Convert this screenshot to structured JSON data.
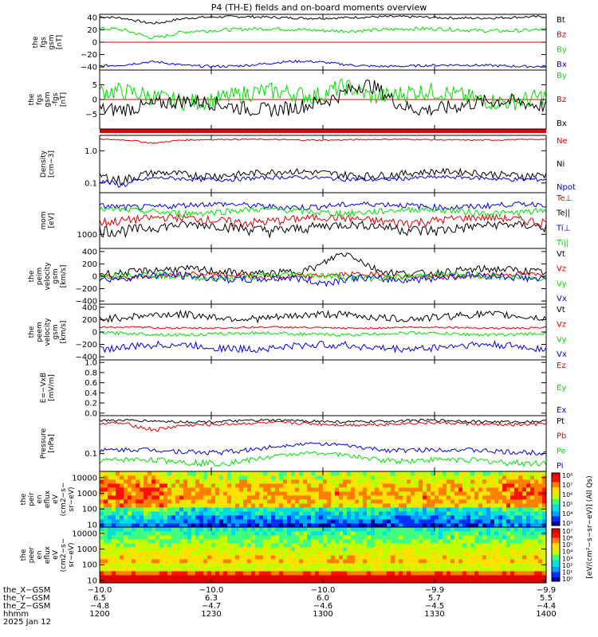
{
  "title": "P4 (TH-E) fields and on-board moments overview",
  "colors": {
    "black": "#000000",
    "red": "#e00000",
    "green": "#00e000",
    "blue": "#0000e0"
  },
  "chart_data": [
    {
      "id": "fgs",
      "type": "line",
      "ylabel": [
        "the",
        "fgs",
        "gsm",
        "[nT]"
      ],
      "ylim": [
        -45,
        45
      ],
      "yscale": "linear",
      "ticks": [
        {
          "v": 40,
          "t": "40"
        },
        {
          "v": 20,
          "t": "20"
        },
        {
          "v": 0,
          "t": "0"
        },
        {
          "v": -20,
          "t": "−20"
        },
        {
          "v": -40,
          "t": "−40"
        }
      ],
      "zero_line": true,
      "series": [
        {
          "name": "Bt",
          "color": "black",
          "base": 40,
          "noise": 2,
          "dip": [
            {
              "c": 0.12,
              "w": 0.05,
              "a": -8
            }
          ]
        },
        {
          "name": "Bz",
          "color": "red"
        },
        {
          "name": "By",
          "color": "green",
          "base": 20,
          "noise": 3,
          "dip": [
            {
              "c": 0.12,
              "w": 0.05,
              "a": -12
            }
          ]
        },
        {
          "name": "Bx",
          "color": "blue",
          "base": -38,
          "noise": 2,
          "dip": [
            {
              "c": 0.12,
              "w": 0.05,
              "a": 5
            },
            {
              "c": 0.45,
              "w": 0.1,
              "a": 6
            }
          ]
        }
      ]
    },
    {
      "id": "fgs_dsl",
      "type": "line",
      "ylabel": [
        "the",
        "fgs",
        "gsm",
        "-fgs",
        "[nT]"
      ],
      "ylim": [
        -10,
        10
      ],
      "yscale": "linear",
      "ticks": [
        {
          "v": 5,
          "t": "5"
        },
        {
          "v": 0,
          "t": "0"
        },
        {
          "v": -5,
          "t": "−5"
        }
      ],
      "zero_line": true,
      "series": [
        {
          "name": "By",
          "color": "green",
          "base": 1,
          "noise": 3,
          "dip": [
            {
              "c": 0.55,
              "w": 0.05,
              "a": 5
            }
          ]
        },
        {
          "name": "Bz",
          "color": "red"
        },
        {
          "name": "Bx",
          "color": "black",
          "base": -2,
          "noise": 2.5,
          "dip": [
            {
              "c": 0.6,
              "w": 0.06,
              "a": 6
            }
          ]
        }
      ]
    },
    {
      "id": "density",
      "type": "line",
      "ylabel": [
        "Density",
        "[cm−3]"
      ],
      "ylim": [
        0.05,
        3
      ],
      "yscale": "log",
      "ticks": [
        {
          "v": 1,
          "t": "1.0"
        },
        {
          "v": 0.1,
          "t": "0.1"
        }
      ],
      "series": [
        {
          "name": "Ne",
          "color": "red",
          "base": 2.2,
          "noise": 0.1,
          "dip": [
            {
              "c": 0.12,
              "w": 0.04,
              "a": -0.4
            }
          ]
        },
        {
          "name": "Ni",
          "color": "black",
          "base": 0.2,
          "noise": 0.05,
          "dip": [
            {
              "c": 0.05,
              "w": 0.05,
              "a": -0.1
            }
          ]
        },
        {
          "name": "Npot",
          "color": "blue",
          "base": 0.14,
          "noise": 0.02,
          "dip": [
            {
              "c": 0.05,
              "w": 0.05,
              "a": -0.06
            }
          ]
        }
      ]
    },
    {
      "id": "temperature",
      "type": "line",
      "ylabel": [
        "mom",
        "[eV]"
      ],
      "ylim": [
        400,
        15000
      ],
      "yscale": "log",
      "ticks": [
        {
          "v": 1000,
          "t": "1000"
        }
      ],
      "series": [
        {
          "name": "Te⊥",
          "color": "red",
          "base": 2600,
          "noise": 700
        },
        {
          "name": "Te||",
          "color": "black",
          "base": 1600,
          "noise": 500
        },
        {
          "name": "Ti⊥",
          "color": "blue",
          "base": 6500,
          "noise": 1200
        },
        {
          "name": "Ti||",
          "color": "green",
          "base": 4500,
          "noise": 900
        }
      ]
    },
    {
      "id": "vel_peim",
      "type": "line",
      "ylabel": [
        "the",
        "peim",
        "velocity",
        "gsm",
        "[km/s]"
      ],
      "ylim": [
        -450,
        450
      ],
      "yscale": "linear",
      "ticks": [
        {
          "v": 400,
          "t": "400"
        },
        {
          "v": 200,
          "t": "200"
        },
        {
          "v": 0,
          "t": "0"
        },
        {
          "v": -200,
          "t": "−200"
        },
        {
          "v": -400,
          "t": "−400"
        }
      ],
      "series": [
        {
          "name": "Vt",
          "color": "black",
          "base": 80,
          "noise": 60,
          "dip": [
            {
              "c": 0.55,
              "w": 0.05,
              "a": 250
            }
          ]
        },
        {
          "name": "Vz",
          "color": "red",
          "base": 10,
          "noise": 40
        },
        {
          "name": "Vy",
          "color": "green",
          "base": 0,
          "noise": 50
        },
        {
          "name": "Vx",
          "color": "blue",
          "base": -20,
          "noise": 60,
          "dip": [
            {
              "c": 0.5,
              "w": 0.05,
              "a": -120
            }
          ]
        }
      ]
    },
    {
      "id": "vel_peem",
      "type": "line",
      "ylabel": [
        "the",
        "peem",
        "velocity",
        "gsm",
        "[km/s]"
      ],
      "ylim": [
        -450,
        450
      ],
      "yscale": "linear",
      "ticks": [
        {
          "v": 400,
          "t": "400"
        },
        {
          "v": 200,
          "t": "200"
        },
        {
          "v": 0,
          "t": "0"
        },
        {
          "v": -200,
          "t": "−200"
        },
        {
          "v": -400,
          "t": "−400"
        }
      ],
      "series": [
        {
          "name": "Vt",
          "color": "black",
          "base": 250,
          "noise": 60
        },
        {
          "name": "Vz",
          "color": "red",
          "base": 70,
          "noise": 15
        },
        {
          "name": "Vy",
          "color": "green",
          "base": -30,
          "noise": 25
        },
        {
          "name": "Vx",
          "color": "blue",
          "base": -240,
          "noise": 60
        }
      ]
    },
    {
      "id": "efield",
      "type": "line",
      "ylabel": [
        "E=−VxB",
        "[mV/m]"
      ],
      "ylim": [
        -0.05,
        1.05
      ],
      "yscale": "linear",
      "ticks": [
        {
          "v": 1,
          "t": "1.0"
        },
        {
          "v": 0.8,
          "t": "0.8"
        },
        {
          "v": 0.6,
          "t": "0.6"
        },
        {
          "v": 0.4,
          "t": "0.4"
        },
        {
          "v": 0.2,
          "t": "0.2"
        },
        {
          "v": 0,
          "t": "0.0"
        }
      ],
      "series": [
        {
          "name": "Ez",
          "color": "red"
        },
        {
          "name": "Ey",
          "color": "green"
        },
        {
          "name": "Ex",
          "color": "blue"
        }
      ]
    },
    {
      "id": "pressure",
      "type": "line",
      "ylabel": [
        "Pressure",
        "[nPa]"
      ],
      "ylim": [
        0.03,
        1.3
      ],
      "yscale": "log",
      "ticks": [
        {
          "v": 0.1,
          "t": "0.1"
        }
      ],
      "series": [
        {
          "name": "Pt",
          "color": "black",
          "base": 0.9,
          "noise": 0.08
        },
        {
          "name": "Pb",
          "color": "red",
          "base": 0.75,
          "noise": 0.08,
          "dip": [
            {
              "c": 0.12,
              "w": 0.05,
              "a": -0.25
            }
          ]
        },
        {
          "name": "Pe",
          "color": "green",
          "base": 0.06,
          "noise": 0.012,
          "dip": [
            {
              "c": 0.5,
              "w": 0.12,
              "a": 0.04
            }
          ]
        },
        {
          "name": "Pi",
          "color": "blue",
          "base": 0.12,
          "noise": 0.02,
          "dip": [
            {
              "c": 0.5,
              "w": 0.12,
              "a": 0.07
            }
          ]
        }
      ]
    },
    {
      "id": "peir_spec",
      "type": "heatmap",
      "ylabel": [
        "the",
        "peir",
        "en",
        "eflux",
        "eV",
        "(cm2−s−",
        "sr−eV)"
      ],
      "ylim": [
        7,
        25000
      ],
      "yscale": "log",
      "ticks": [
        {
          "v": 10000,
          "t": "10000"
        },
        {
          "v": 1000,
          "t": "1000"
        },
        {
          "v": 100,
          "t": "100"
        },
        {
          "v": 10,
          "t": "10"
        }
      ],
      "colorbar": {
        "labels": [
          "10⁸",
          "10⁷",
          "10⁶",
          "10⁵",
          "10⁴",
          "10³"
        ],
        "label": "[eV/(cm²−s−sr−eV)] (All Qs)"
      }
    },
    {
      "id": "peer_spec",
      "type": "heatmap",
      "ylabel": [
        "the",
        "peer",
        "en",
        "eflux",
        "eV",
        "(cm2−s−",
        "sr−eV)"
      ],
      "ylim": [
        7,
        25000
      ],
      "yscale": "log",
      "ticks": [
        {
          "v": 10000,
          "t": "10000"
        },
        {
          "v": 1000,
          "t": "1000"
        },
        {
          "v": 100,
          "t": "100"
        },
        {
          "v": 10,
          "t": "10"
        }
      ],
      "colorbar": {
        "labels": [
          "10⁷",
          "10⁶",
          "10⁵",
          "10⁴",
          "10³",
          "10²",
          "10¹",
          "10⁰"
        ],
        "label": ""
      }
    }
  ],
  "xaxis": {
    "row_labels": [
      "the_X−GSM",
      "the_Y−GSM",
      "the_Z−GSM",
      "hhmm",
      "2025 Jan 12"
    ],
    "ticks": [
      {
        "frac": 0.0,
        "vals": [
          "−10.0",
          "6.5",
          "−4.8",
          "1200"
        ]
      },
      {
        "frac": 0.25,
        "vals": [
          "−10.0",
          "6.3",
          "−4.7",
          "1230"
        ]
      },
      {
        "frac": 0.5,
        "vals": [
          "−10.0",
          "6.0",
          "−4.6",
          "1300"
        ]
      },
      {
        "frac": 0.75,
        "vals": [
          "−9.9",
          "5.7",
          "−4.5",
          "1330"
        ]
      },
      {
        "frac": 1.0,
        "vals": [
          "−9.9",
          "5.5",
          "−4.4",
          "1400"
        ]
      }
    ]
  }
}
